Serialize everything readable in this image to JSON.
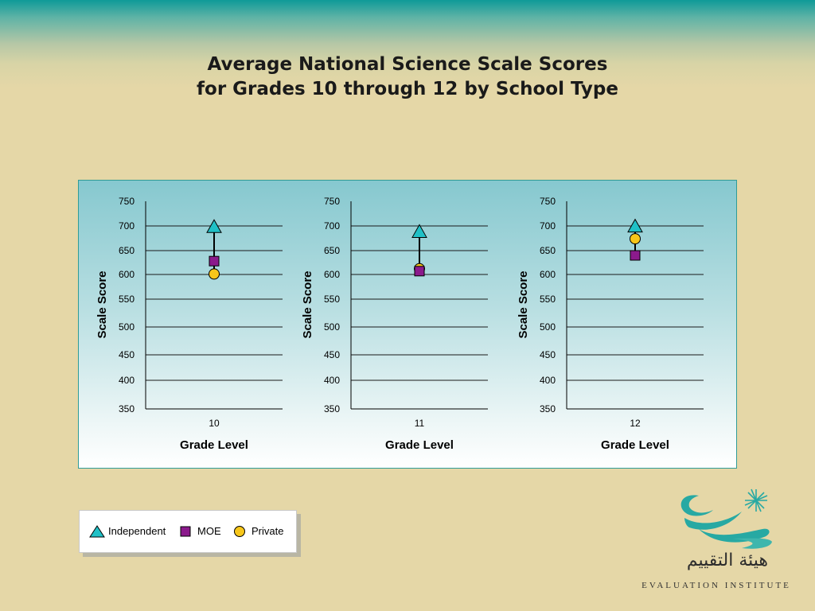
{
  "title_lines": [
    "Average National Science Scale Scores",
    "for Grades 10 through 12 by School Type"
  ],
  "colors": {
    "independent": "#20c0c6",
    "moe": "#8b1a8c",
    "private": "#f7c61a",
    "gridline": "#1a1a1a"
  },
  "chart_data": [
    {
      "type": "scatter",
      "categories": [
        "10"
      ],
      "xlabel": "Grade Level",
      "ylabel": "Scale Score",
      "ylim": [
        350,
        750
      ],
      "yticks": [
        350,
        400,
        450,
        500,
        550,
        600,
        650,
        700,
        750
      ],
      "grid": true,
      "series": [
        {
          "name": "Independent",
          "marker": "triangle",
          "values": [
            698
          ]
        },
        {
          "name": "MOE",
          "marker": "square",
          "values": [
            628
          ]
        },
        {
          "name": "Private",
          "marker": "circle",
          "values": [
            601
          ]
        }
      ]
    },
    {
      "type": "scatter",
      "categories": [
        "11"
      ],
      "xlabel": "Grade Level",
      "ylabel": "Scale Score",
      "ylim": [
        350,
        750
      ],
      "yticks": [
        350,
        400,
        450,
        500,
        550,
        600,
        650,
        700,
        750
      ],
      "grid": true,
      "series": [
        {
          "name": "Independent",
          "marker": "triangle",
          "values": [
            688
          ]
        },
        {
          "name": "MOE",
          "marker": "square",
          "values": [
            607
          ]
        },
        {
          "name": "Private",
          "marker": "circle",
          "values": [
            612
          ]
        }
      ]
    },
    {
      "type": "scatter",
      "categories": [
        "12"
      ],
      "xlabel": "Grade Level",
      "ylabel": "Scale Score",
      "ylim": [
        350,
        750
      ],
      "yticks": [
        350,
        400,
        450,
        500,
        550,
        600,
        650,
        700,
        750
      ],
      "grid": true,
      "series": [
        {
          "name": "Independent",
          "marker": "triangle",
          "values": [
            699
          ]
        },
        {
          "name": "MOE",
          "marker": "square",
          "values": [
            640
          ]
        },
        {
          "name": "Private",
          "marker": "circle",
          "values": [
            674
          ]
        }
      ]
    }
  ],
  "legend": {
    "placement": "bottom-left",
    "items": [
      {
        "label": "Independent",
        "marker": "triangle"
      },
      {
        "label": "MOE",
        "marker": "square"
      },
      {
        "label": "Private",
        "marker": "circle"
      }
    ]
  },
  "logo": {
    "arabic_text": "هيئة التقييم",
    "english_text": "EVALUATION INSTITUTE"
  }
}
